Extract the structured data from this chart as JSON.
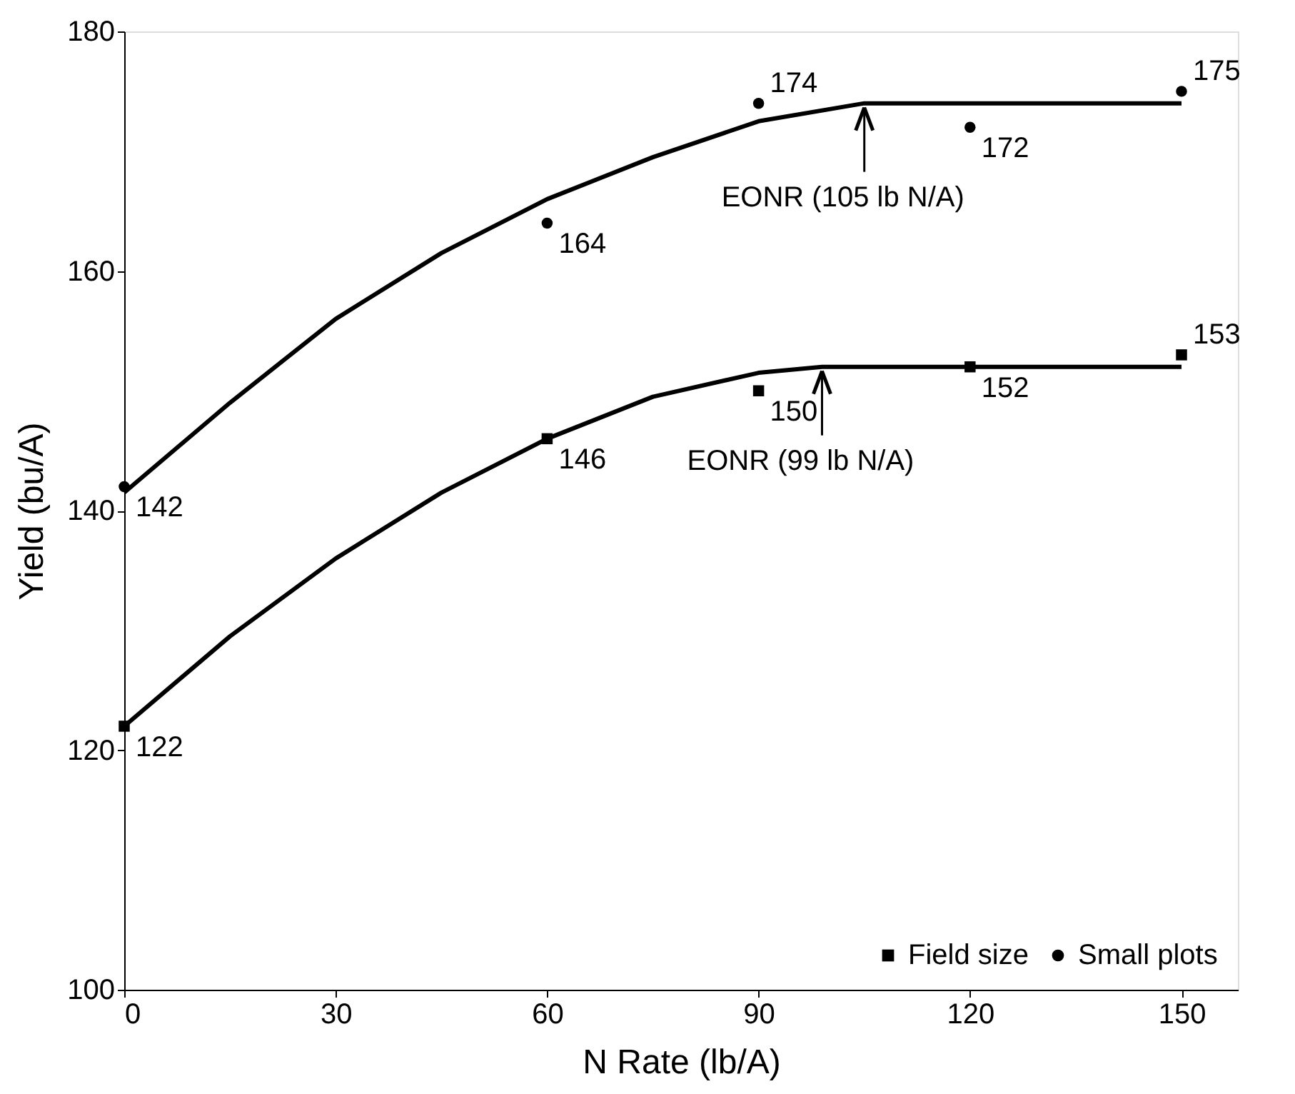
{
  "chart_data": {
    "type": "scatter",
    "xlabel": "N Rate (lb/A)",
    "ylabel": "Yield (bu/A)",
    "x": [
      0,
      60,
      90,
      120,
      150
    ],
    "xlim": [
      0,
      158
    ],
    "xticks": [
      0,
      30,
      60,
      90,
      120,
      150
    ],
    "ylim": [
      100,
      180
    ],
    "yticks": [
      100,
      120,
      140,
      160,
      180
    ],
    "grid": false,
    "legend": "bottom right",
    "series": [
      {
        "name": "Field size",
        "color": "#000000",
        "marker": "square",
        "values": [
          122,
          146,
          150,
          152,
          153
        ],
        "value_labels": [
          "122",
          "146",
          "150",
          "152",
          "153"
        ]
      },
      {
        "name": "Small plots",
        "color": "#000000",
        "marker": "circle",
        "values": [
          142,
          164,
          174,
          172,
          175
        ],
        "value_labels": [
          "142",
          "164",
          "174",
          "172",
          "175"
        ]
      },
      {
        "type": "line",
        "color": "#000000",
        "marker": "none",
        "line_style": "solid",
        "x": [
          0,
          15,
          30,
          45,
          60,
          75,
          90,
          99,
          150
        ],
        "values": [
          122,
          129.5,
          136,
          141.5,
          146,
          149.5,
          151.5,
          152,
          152
        ]
      },
      {
        "type": "line",
        "color": "#000000",
        "marker": "none",
        "line_style": "solid",
        "x": [
          0,
          15,
          30,
          45,
          60,
          75,
          90,
          105,
          150
        ],
        "values": [
          141.5,
          149,
          156,
          161.5,
          166,
          169.5,
          172.5,
          174,
          174
        ]
      }
    ],
    "annotations": [
      {
        "text": "EONR (105 lb N/A)",
        "x": 105,
        "y": 174
      },
      {
        "text": "EONR (99 lb N/A)",
        "x": 99,
        "y": 152
      }
    ]
  }
}
